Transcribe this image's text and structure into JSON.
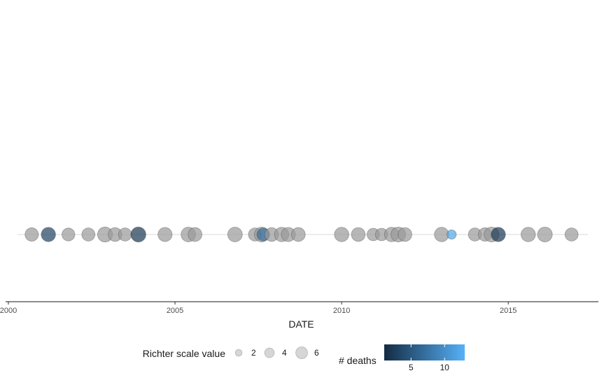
{
  "chart_data": {
    "type": "scatter",
    "title": "",
    "xlabel": "DATE",
    "ylabel": "",
    "xlim": [
      2000.0,
      2017.6
    ],
    "x_ticks": [
      2000,
      2005,
      2010,
      2015
    ],
    "x_tick_labels": [
      "2000",
      "2005",
      "2010",
      "2015"
    ],
    "grid": false,
    "points": [
      {
        "x": 2000.7,
        "richter": 5.2,
        "deaths": null
      },
      {
        "x": 2001.2,
        "richter": 6.0,
        "deaths": 3
      },
      {
        "x": 2001.8,
        "richter": 4.8,
        "deaths": null
      },
      {
        "x": 2002.4,
        "richter": 5.0,
        "deaths": null
      },
      {
        "x": 2002.9,
        "richter": 6.5,
        "deaths": null
      },
      {
        "x": 2003.2,
        "richter": 5.5,
        "deaths": null
      },
      {
        "x": 2003.5,
        "richter": 5.0,
        "deaths": null
      },
      {
        "x": 2003.9,
        "richter": 6.6,
        "deaths": 2
      },
      {
        "x": 2004.7,
        "richter": 5.8,
        "deaths": null
      },
      {
        "x": 2005.4,
        "richter": 6.2,
        "deaths": null
      },
      {
        "x": 2005.6,
        "richter": 5.6,
        "deaths": null
      },
      {
        "x": 2006.8,
        "richter": 6.2,
        "deaths": null
      },
      {
        "x": 2007.4,
        "richter": 5.0,
        "deaths": null
      },
      {
        "x": 2007.6,
        "richter": 6.3,
        "deaths": null
      },
      {
        "x": 2007.65,
        "richter": 4.8,
        "deaths": 7
      },
      {
        "x": 2007.9,
        "richter": 5.5,
        "deaths": null
      },
      {
        "x": 2008.2,
        "richter": 6.0,
        "deaths": null
      },
      {
        "x": 2008.4,
        "richter": 5.8,
        "deaths": null
      },
      {
        "x": 2008.7,
        "richter": 5.6,
        "deaths": null
      },
      {
        "x": 2010.0,
        "richter": 6.0,
        "deaths": null
      },
      {
        "x": 2010.5,
        "richter": 5.5,
        "deaths": null
      },
      {
        "x": 2010.95,
        "richter": 4.5,
        "deaths": null
      },
      {
        "x": 2011.2,
        "richter": 4.5,
        "deaths": null
      },
      {
        "x": 2011.5,
        "richter": 6.0,
        "deaths": null
      },
      {
        "x": 2011.7,
        "richter": 6.3,
        "deaths": null
      },
      {
        "x": 2011.9,
        "richter": 5.5,
        "deaths": null
      },
      {
        "x": 2013.0,
        "richter": 6.0,
        "deaths": null
      },
      {
        "x": 2013.3,
        "richter": 2.5,
        "deaths": 12
      },
      {
        "x": 2014.0,
        "richter": 5.0,
        "deaths": null
      },
      {
        "x": 2014.3,
        "richter": 5.2,
        "deaths": null
      },
      {
        "x": 2014.5,
        "richter": 6.4,
        "deaths": null
      },
      {
        "x": 2014.7,
        "richter": 6.0,
        "deaths": 2
      },
      {
        "x": 2015.6,
        "richter": 6.0,
        "deaths": null
      },
      {
        "x": 2016.1,
        "richter": 6.3,
        "deaths": null
      },
      {
        "x": 2016.9,
        "richter": 5.0,
        "deaths": null
      }
    ],
    "na_color": "#999999",
    "legend_size": {
      "title": "Richter scale value",
      "values": [
        2,
        4,
        6
      ],
      "labels": [
        "2",
        "4",
        "6"
      ]
    },
    "legend_color": {
      "title": "# deaths",
      "range": [
        1,
        13
      ],
      "low_color": "#132b43",
      "high_color": "#56b1f7",
      "breaks": [
        5,
        10
      ],
      "labels": [
        "5",
        "10"
      ]
    },
    "legend_placement": "bottom"
  }
}
